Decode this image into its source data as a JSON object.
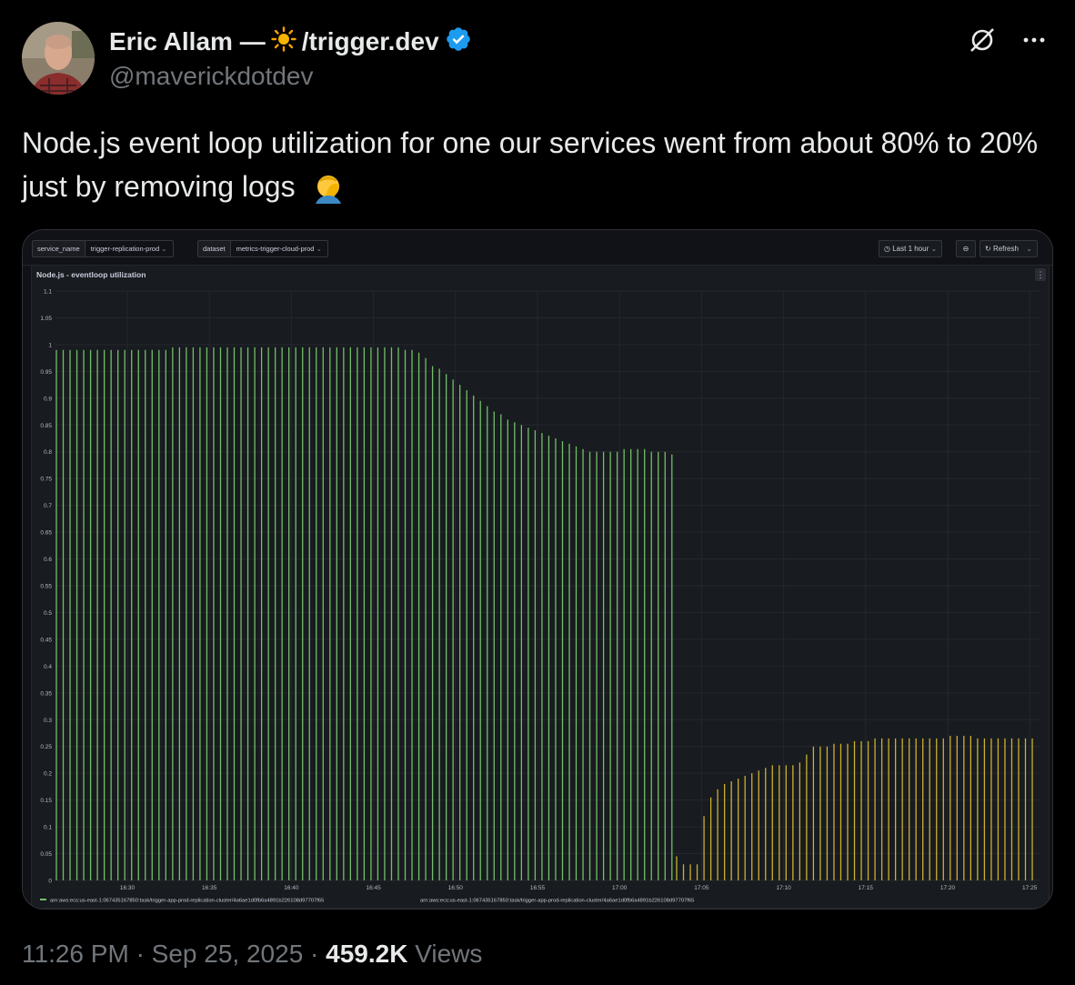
{
  "author": {
    "name": "Eric Allam —",
    "name_suffix": "/trigger.dev",
    "handle": "@maverickdotdev"
  },
  "icons": [
    "sun-icon",
    "verified-badge-icon",
    "grok-icon",
    "more-icon",
    "face-palm-emoji"
  ],
  "tweet": {
    "text": "Node.js event loop utilization for one our services went from about 80% to 20% just by removing logs"
  },
  "dashboard": {
    "filters": [
      {
        "key": "service_name",
        "value": "trigger-replication-prod"
      },
      {
        "key": "dataset",
        "value": "metrics-trigger-cloud-prod"
      }
    ],
    "time_range": "Last 1 hour",
    "refresh_label": "Refresh",
    "panel_title": "Node.js - eventloop utilization"
  },
  "chart_data": {
    "type": "bar",
    "title": "Node.js - eventloop utilization",
    "ylim": [
      0,
      1.1
    ],
    "yticks": [
      "1.1",
      "1.05",
      "1",
      "0.95",
      "0.9",
      "0.85",
      "0.8",
      "0.75",
      "0.7",
      "0.65",
      "0.6",
      "0.55",
      "0.5",
      "0.45",
      "0.4",
      "0.35",
      "0.3",
      "0.25",
      "0.2",
      "0.15",
      "0.1",
      "0.05",
      "0"
    ],
    "xticks": [
      "16:30",
      "16:35",
      "16:40",
      "16:45",
      "16:50",
      "16:55",
      "17:00",
      "17:05",
      "17:10",
      "17:15",
      "17:20",
      "17:25"
    ],
    "grid": true,
    "series": [
      {
        "name": "arn:aws:ecs:us-east-1:067435167850:task/trigger-app-prod-replication-cluster/4a6ae1d0fb6a4891b226108d97707f65",
        "color": "#73bf69",
        "values": [
          0.99,
          0.99,
          0.99,
          0.99,
          0.99,
          0.99,
          0.99,
          0.99,
          0.99,
          0.99,
          0.99,
          0.99,
          0.99,
          0.99,
          0.99,
          0.99,
          0.99,
          0.995,
          0.995,
          0.995,
          0.995,
          0.995,
          0.995,
          0.995,
          0.995,
          0.995,
          0.995,
          0.995,
          0.995,
          0.995,
          0.995,
          0.995,
          0.995,
          0.995,
          0.995,
          0.995,
          0.995,
          0.995,
          0.995,
          0.995,
          0.995,
          0.995,
          0.995,
          0.995,
          0.995,
          0.995,
          0.995,
          0.995,
          0.995,
          0.995,
          0.995,
          0.99,
          0.99,
          0.985,
          0.975,
          0.96,
          0.955,
          0.945,
          0.935,
          0.925,
          0.915,
          0.905,
          0.895,
          0.885,
          0.875,
          0.87,
          0.86,
          0.855,
          0.85,
          0.845,
          0.84,
          0.835,
          0.83,
          0.825,
          0.82,
          0.815,
          0.81,
          0.805,
          0.8,
          0.8,
          0.8,
          0.8,
          0.8,
          0.805,
          0.805,
          0.805,
          0.805,
          0.8,
          0.8,
          0.8,
          0.795
        ]
      },
      {
        "name": "arn:aws:ecs:us-east-1:067435167850:task/trigger-app-prod-replication-cluster/4a6ae1d0fb6a4891b226108d97707f65",
        "color": "#cbb130",
        "values": [
          0.045,
          0.03,
          0.03,
          0.03,
          0.12,
          0.155,
          0.17,
          0.18,
          0.185,
          0.19,
          0.195,
          0.2,
          0.205,
          0.21,
          0.215,
          0.215,
          0.215,
          0.215,
          0.22,
          0.235,
          0.25,
          0.25,
          0.25,
          0.255,
          0.255,
          0.255,
          0.26,
          0.26,
          0.26,
          0.265,
          0.265,
          0.265,
          0.265,
          0.265,
          0.265,
          0.265,
          0.265,
          0.265,
          0.265,
          0.265,
          0.27,
          0.27,
          0.27,
          0.27,
          0.265,
          0.265,
          0.265,
          0.265,
          0.265,
          0.265,
          0.265,
          0.265,
          0.265
        ]
      }
    ]
  },
  "footer": {
    "time": "11:26 PM",
    "date": "Sep 25, 2025",
    "views_count": "459.2K",
    "views_label": "Views",
    "sep": "·"
  }
}
